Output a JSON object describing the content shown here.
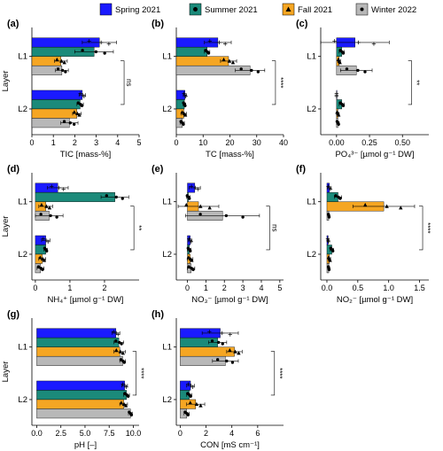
{
  "legend": [
    {
      "name": "Spring 2021",
      "color": "#1a1aff",
      "marker": "square"
    },
    {
      "name": "Summer 2021",
      "color": "#1b8a7a",
      "marker": "circle"
    },
    {
      "name": "Fall 2021",
      "color": "#f5a623",
      "marker": "triangle"
    },
    {
      "name": "Winter 2022",
      "color": "#b8b8b8",
      "marker": "dot"
    }
  ],
  "y_axis_title": "Layer",
  "chart_data": [
    {
      "panel": "(a)",
      "type": "bar",
      "orientation": "horizontal",
      "xlabel": "TIC [mass-%]",
      "xlim": [
        0,
        5
      ],
      "xticks": [
        0,
        1,
        2,
        3,
        4,
        5
      ],
      "categories": [
        "L1",
        "L2"
      ],
      "series": [
        {
          "name": "Spring 2021",
          "values": [
            3.15,
            2.35
          ],
          "err": [
            0.8,
            0.15
          ]
        },
        {
          "name": "Summer 2021",
          "values": [
            2.9,
            2.25
          ],
          "err": [
            0.9,
            0.15
          ]
        },
        {
          "name": "Fall 2021",
          "values": [
            1.35,
            2.1
          ],
          "err": [
            0.3,
            0.2
          ]
        },
        {
          "name": "Winter 2022",
          "values": [
            1.4,
            1.75
          ],
          "err": [
            0.3,
            0.4
          ]
        }
      ],
      "significance": [
        {
          "label": "ns",
          "x": 4.3
        }
      ]
    },
    {
      "panel": "(b)",
      "type": "bar",
      "orientation": "horizontal",
      "xlabel": "TC [mass-%]",
      "xlim": [
        0,
        40
      ],
      "xticks": [
        0,
        10,
        20,
        30,
        40
      ],
      "categories": [
        "L1",
        "L2"
      ],
      "series": [
        {
          "name": "Spring 2021",
          "values": [
            15.5,
            3.2
          ],
          "err": [
            5,
            0.6
          ]
        },
        {
          "name": "Summer 2021",
          "values": [
            11.5,
            3.0
          ],
          "err": [
            1.0,
            0.5
          ]
        },
        {
          "name": "Fall 2021",
          "values": [
            19.5,
            2.8
          ],
          "err": [
            3.0,
            1.0
          ]
        },
        {
          "name": "Winter 2022",
          "values": [
            27.5,
            2.2
          ],
          "err": [
            5.5,
            0.8
          ]
        }
      ],
      "significance": [
        {
          "label": "****",
          "x": 37
        }
      ]
    },
    {
      "panel": "(c)",
      "type": "bar",
      "orientation": "horizontal",
      "xlabel": "PO₄³⁻ [µmol g⁻¹ DW]",
      "xlim": [
        -0.12,
        0.7
      ],
      "xticks": [
        0.0,
        0.25,
        0.5
      ],
      "categories": [
        "L1",
        "L2"
      ],
      "series": [
        {
          "name": "Spring 2021",
          "values": [
            0.14,
            0.0
          ],
          "err": [
            0.26,
            0.0
          ]
        },
        {
          "name": "Summer 2021",
          "values": [
            0.04,
            0.04
          ],
          "err": [
            0.02,
            0.02
          ]
        },
        {
          "name": "Fall 2021",
          "values": [
            0.02,
            0.01
          ],
          "err": [
            0.01,
            0.01
          ]
        },
        {
          "name": "Winter 2022",
          "values": [
            0.15,
            0.01
          ],
          "err": [
            0.12,
            0.01
          ]
        }
      ],
      "significance": [
        {
          "label": "**",
          "x": 0.57
        }
      ]
    },
    {
      "panel": "(d)",
      "type": "bar",
      "orientation": "horizontal",
      "xlabel": "NH₄⁺ [µmol g⁻¹ DW]",
      "xlim": [
        -0.1,
        3.0
      ],
      "xticks": [
        0,
        1,
        2
      ],
      "categories": [
        "L1",
        "L2"
      ],
      "series": [
        {
          "name": "Spring 2021",
          "values": [
            0.65,
            0.3
          ],
          "err": [
            0.3,
            0.12
          ]
        },
        {
          "name": "Summer 2021",
          "values": [
            2.3,
            0.3
          ],
          "err": [
            0.4,
            0.05
          ]
        },
        {
          "name": "Fall 2021",
          "values": [
            0.3,
            0.2
          ],
          "err": [
            0.2,
            0.1
          ]
        },
        {
          "name": "Winter 2022",
          "values": [
            0.4,
            0.15
          ],
          "err": [
            0.4,
            0.1
          ]
        }
      ],
      "significance": [
        {
          "label": "**",
          "x": 2.85
        }
      ]
    },
    {
      "panel": "(e)",
      "type": "bar",
      "orientation": "horizontal",
      "xlabel": "NO₃⁻ [µmol g⁻¹ DW]",
      "xlim": [
        -0.6,
        5.2
      ],
      "xticks": [
        0,
        1,
        2,
        3,
        4,
        5
      ],
      "categories": [
        "L1",
        "L2"
      ],
      "series": [
        {
          "name": "Spring 2021",
          "values": [
            0.4,
            0.15
          ],
          "err": [
            0.3,
            0.1
          ]
        },
        {
          "name": "Summer 2021",
          "values": [
            0.05,
            0.1
          ],
          "err": [
            0.1,
            0.1
          ]
        },
        {
          "name": "Fall 2021",
          "values": [
            0.6,
            0.15
          ],
          "err": [
            1.1,
            0.15
          ]
        },
        {
          "name": "Winter 2022",
          "values": [
            1.9,
            0.2
          ],
          "err": [
            2.0,
            0.2
          ]
        }
      ],
      "significance": [
        {
          "label": "ns",
          "x": 4.45
        }
      ]
    },
    {
      "panel": "(f)",
      "type": "bar",
      "orientation": "horizontal",
      "xlabel": "NO₂⁻ [µmol g⁻¹ DW]",
      "xlim": [
        -0.1,
        1.65
      ],
      "xticks": [
        0.0,
        0.5,
        1.0,
        1.5
      ],
      "categories": [
        "L1",
        "L2"
      ],
      "series": [
        {
          "name": "Spring 2021",
          "values": [
            0.04,
            0.02
          ],
          "err": [
            0.03,
            0.01
          ]
        },
        {
          "name": "Summer 2021",
          "values": [
            0.18,
            0.08
          ],
          "err": [
            0.06,
            0.03
          ]
        },
        {
          "name": "Fall 2021",
          "values": [
            0.92,
            0.04
          ],
          "err": [
            0.5,
            0.02
          ]
        },
        {
          "name": "Winter 2022",
          "values": [
            0.03,
            0.03
          ],
          "err": [
            0.01,
            0.01
          ]
        }
      ],
      "significance": [
        {
          "label": "****",
          "x": 1.55
        }
      ]
    },
    {
      "panel": "(g)",
      "type": "bar",
      "orientation": "horizontal",
      "xlabel": "pH [–]",
      "xlim": [
        -0.5,
        10.6
      ],
      "xticks": [
        0.0,
        2.5,
        5.0,
        7.5,
        10.0
      ],
      "categories": [
        "L1",
        "L2"
      ],
      "series": [
        {
          "name": "Spring 2021",
          "values": [
            8.2,
            9.1
          ],
          "err": [
            0.4,
            0.3
          ]
        },
        {
          "name": "Summer 2021",
          "values": [
            8.5,
            9.3
          ],
          "err": [
            0.5,
            0.3
          ]
        },
        {
          "name": "Fall 2021",
          "values": [
            8.6,
            9.0
          ],
          "err": [
            0.6,
            0.4
          ]
        },
        {
          "name": "Winter 2022",
          "values": [
            8.9,
            9.7
          ],
          "err": [
            0.3,
            0.2
          ]
        }
      ],
      "significance": [
        {
          "label": "****",
          "x": 10.3
        }
      ]
    },
    {
      "panel": "(h)",
      "type": "bar",
      "orientation": "horizontal",
      "xlabel": "CON [mS cm⁻¹]",
      "xlim": [
        -0.3,
        8.0
      ],
      "xticks": [
        0,
        2,
        4,
        6
      ],
      "categories": [
        "L1",
        "L2"
      ],
      "series": [
        {
          "name": "Spring 2021",
          "values": [
            3.1,
            0.8
          ],
          "err": [
            1.4,
            0.3
          ]
        },
        {
          "name": "Summer 2021",
          "values": [
            2.9,
            0.7
          ],
          "err": [
            0.7,
            0.2
          ]
        },
        {
          "name": "Fall 2021",
          "values": [
            4.2,
            1.2
          ],
          "err": [
            0.6,
            0.7
          ]
        },
        {
          "name": "Winter 2022",
          "values": [
            3.5,
            0.5
          ],
          "err": [
            1.0,
            0.2
          ]
        }
      ],
      "significance": [
        {
          "label": "****",
          "x": 7.3
        }
      ]
    }
  ]
}
